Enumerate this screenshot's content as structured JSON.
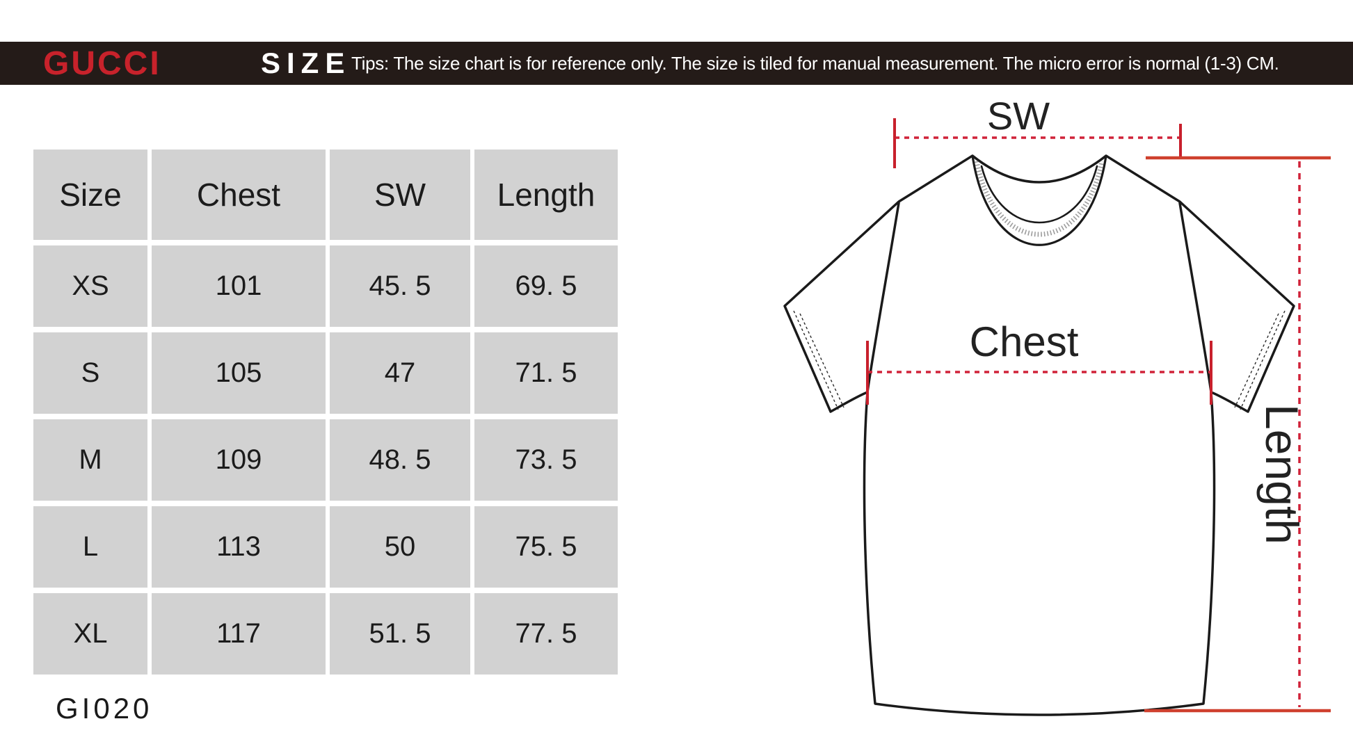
{
  "header_bar": {
    "brand": "GUCCI",
    "title": "SIZE",
    "tips": "Tips: The size chart is for reference only. The size is tiled for manual measurement. The micro error is normal (1-3) CM."
  },
  "size_table": {
    "columns": [
      "Size",
      "Chest",
      "SW",
      "Length"
    ],
    "rows": [
      [
        "XS",
        "101",
        "45. 5",
        "69. 5"
      ],
      [
        "S",
        "105",
        "47",
        "71. 5"
      ],
      [
        "M",
        "109",
        "48. 5",
        "73. 5"
      ],
      [
        "L",
        "113",
        "50",
        "75. 5"
      ],
      [
        "XL",
        "117",
        "51. 5",
        "77. 5"
      ]
    ]
  },
  "product_code": "GI020",
  "diagram": {
    "labels": {
      "shoulder_width": "SW",
      "chest": "Chest",
      "length": "Length"
    }
  },
  "chart_data": {
    "type": "table",
    "title": "SIZE",
    "columns": [
      "Size",
      "Chest",
      "SW",
      "Length"
    ],
    "rows": [
      [
        "XS",
        101,
        45.5,
        69.5
      ],
      [
        "S",
        105,
        47,
        71.5
      ],
      [
        "M",
        109,
        48.5,
        73.5
      ],
      [
        "L",
        113,
        50,
        75.5
      ],
      [
        "XL",
        117,
        51.5,
        77.5
      ]
    ],
    "units": "CM"
  },
  "colors": {
    "bar_bg": "#241b18",
    "brand_red": "#c8222b",
    "cell_gray": "#d2d2d2",
    "dotted_red": "#d02239",
    "tick_red": "#c8202c",
    "solid_red": "#cf402e",
    "line_black": "#1a1a1a"
  }
}
